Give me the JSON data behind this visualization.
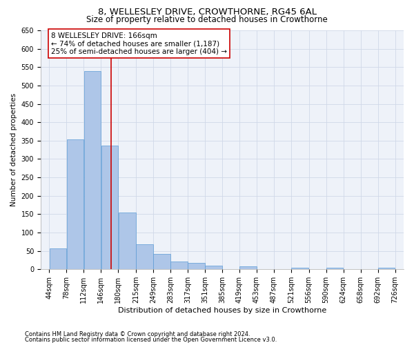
{
  "title1": "8, WELLESLEY DRIVE, CROWTHORNE, RG45 6AL",
  "title2": "Size of property relative to detached houses in Crowthorne",
  "xlabel": "Distribution of detached houses by size in Crowthorne",
  "ylabel": "Number of detached properties",
  "footnote1": "Contains HM Land Registry data © Crown copyright and database right 2024.",
  "footnote2": "Contains public sector information licensed under the Open Government Licence v3.0.",
  "bar_edges": [
    44,
    78,
    112,
    146,
    180,
    215,
    249,
    283,
    317,
    351,
    385,
    419,
    453,
    487,
    521,
    556,
    590,
    624,
    658,
    692,
    726
  ],
  "bar_heights": [
    57,
    354,
    540,
    337,
    155,
    68,
    42,
    22,
    17,
    10,
    0,
    8,
    0,
    0,
    4,
    0,
    4,
    0,
    0,
    4
  ],
  "bar_color": "#aec6e8",
  "bar_edge_color": "#5b9bd5",
  "property_line_x": 166,
  "property_line_color": "#cc0000",
  "annotation_line1": "8 WELLESLEY DRIVE: 166sqm",
  "annotation_line2": "← 74% of detached houses are smaller (1,187)",
  "annotation_line3": "25% of semi-detached houses are larger (404) →",
  "annotation_box_color": "#ffffff",
  "annotation_box_edge_color": "#cc0000",
  "ylim": [
    0,
    650
  ],
  "yticks": [
    0,
    50,
    100,
    150,
    200,
    250,
    300,
    350,
    400,
    450,
    500,
    550,
    600,
    650
  ],
  "grid_color": "#d0d8e8",
  "background_color": "#eef2f9",
  "title1_fontsize": 9.5,
  "title2_fontsize": 8.5,
  "xlabel_fontsize": 8,
  "ylabel_fontsize": 7.5,
  "tick_fontsize": 7,
  "annotation_fontsize": 7.5,
  "footnote_fontsize": 6
}
